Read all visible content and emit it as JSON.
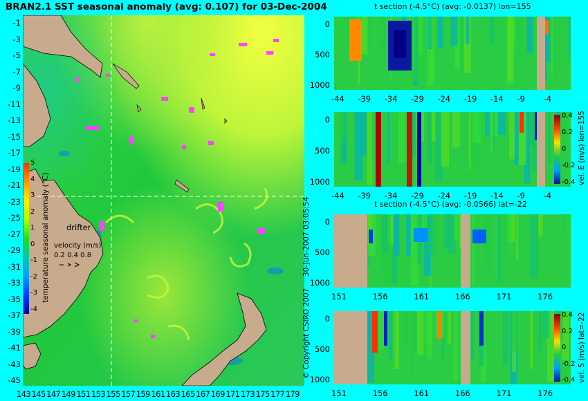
{
  "map": {
    "title": "BRAN2.1 SST seasonal anomaly (avg: 0.107) for 03-Dec-2004",
    "lat_labels": [
      "-1",
      "-3",
      "-5",
      "-7",
      "-9",
      "-11",
      "-13",
      "-15",
      "-17",
      "-19",
      "-21",
      "-23",
      "-25",
      "-27",
      "-29",
      "-31",
      "-33",
      "-35",
      "-37",
      "-39",
      "-41",
      "-43",
      "-45"
    ],
    "lon_labels": [
      "143",
      "145",
      "147",
      "149",
      "151",
      "153",
      "155",
      "157",
      "159",
      "161",
      "163",
      "165",
      "167",
      "169",
      "171",
      "173",
      "175",
      "177",
      "179"
    ],
    "colorbar": {
      "label": "temperature seasonal anomaly (°C)",
      "ticks": [
        "5",
        "4",
        "3",
        "2",
        "1",
        "0",
        "-1",
        "-2",
        "-3",
        "-4"
      ],
      "ramp": [
        "#ff3000",
        "#ff9900",
        "#ffee00",
        "#aaff00",
        "#22dd22",
        "#00c8a0",
        "#00a0ff",
        "#0040ff",
        "#0000aa"
      ]
    },
    "drifter_label": "drifter",
    "velocity_label": "velocity (m/s)",
    "velocity_scale": "0.2 0.4 0.8",
    "crosshair": {
      "lon": 155,
      "lat": -22
    }
  },
  "stamp": "30-Jun-2007 03:05:54",
  "copyright": "© Copyright CSIRO 2007",
  "panels": [
    {
      "title": "t section (-4.5°C) (avg: -0.0137) lon=155",
      "x_ticks": [
        "-44",
        "-39",
        "-34",
        "-29",
        "-24",
        "-19",
        "-14",
        "-9",
        "-4"
      ],
      "y_ticks": [
        "0",
        "500",
        "1000"
      ]
    },
    {
      "title": "",
      "x_ticks": [
        "-44",
        "-39",
        "-34",
        "-29",
        "-24",
        "-19",
        "-14",
        "-9",
        "-4"
      ],
      "y_ticks": [
        "0",
        "500",
        "1000"
      ],
      "colorbar": {
        "label": "vel. E (m/s) lon=155",
        "ticks": [
          "0.4",
          "0.2",
          "0",
          "-0.2",
          "-0.4"
        ]
      }
    },
    {
      "title": "t section (-4.5°C) (avg: -0.0566) lat=-22",
      "x_ticks": [
        "151",
        "156",
        "161",
        "166",
        "171",
        "176"
      ],
      "y_ticks": [
        "0",
        "500",
        "1000"
      ]
    },
    {
      "title": "",
      "x_ticks": [
        "151",
        "156",
        "161",
        "166",
        "171",
        "176"
      ],
      "y_ticks": [
        "0",
        "500",
        "1000"
      ],
      "colorbar": {
        "label": "vel. S (m/s) lat=-22",
        "ticks": [
          "0.4",
          "0.2",
          "0",
          "-0.2",
          "-0.4"
        ]
      }
    }
  ],
  "colors": {
    "background": "#00ffff",
    "land": "#c8aa8c",
    "drifter": "#ff44ff",
    "ocean": "#22cc44"
  }
}
